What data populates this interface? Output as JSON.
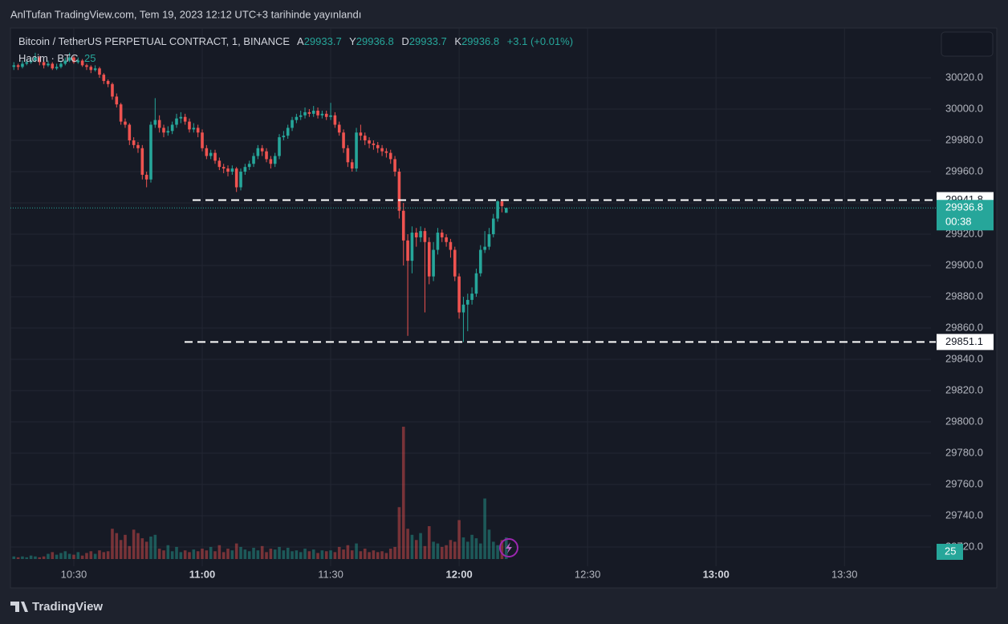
{
  "header": {
    "published": "AnlTufan TradingView.com, Tem 19, 2023 12:12 UTC+3 tarihinde yayınlandı",
    "symbol": "Bitcoin / TetherUS PERPETUAL CONTRACT, 1, BINANCE",
    "open_label": "A",
    "high_label": "Y",
    "low_label": "D",
    "close_label": "K",
    "change": "+3.1 (+0.01%)",
    "volume_label": "Hacim · BTC",
    "countdown": "00:38"
  },
  "footer": {
    "brand": "TradingView"
  },
  "chart_data": {
    "type": "candlestick",
    "x": [
      616,
      617,
      618,
      619,
      620,
      621,
      622,
      623,
      624,
      625,
      626,
      627,
      628,
      629,
      630,
      631,
      632,
      633,
      634,
      635,
      636,
      637,
      638,
      639,
      640,
      641,
      642,
      643,
      644,
      645,
      646,
      647,
      648,
      649,
      650,
      651,
      652,
      653,
      654,
      655,
      656,
      657,
      658,
      659,
      660,
      661,
      662,
      663,
      664,
      665,
      666,
      667,
      668,
      669,
      670,
      671,
      672,
      673,
      674,
      675,
      676,
      677,
      678,
      679,
      680,
      681,
      682,
      683,
      684,
      685,
      686,
      687,
      688,
      689,
      690,
      691,
      692,
      693,
      694,
      695,
      696,
      697,
      698,
      699,
      700,
      701,
      702,
      703,
      704,
      705,
      706,
      707,
      708,
      709,
      710,
      711,
      712,
      713,
      714,
      715,
      716,
      717,
      718,
      719,
      720,
      721,
      722,
      723,
      724,
      725,
      726,
      727,
      728,
      729,
      730,
      731
    ],
    "open": [
      30027,
      30028,
      30027,
      30029,
      30030,
      30031,
      30033,
      30030,
      30028,
      30029,
      30026,
      30027,
      30029,
      30031,
      30033,
      30030,
      30031,
      30028,
      30027,
      30025,
      30026,
      30022,
      30018,
      30016,
      30008,
      30003,
      29992,
      29990,
      29980,
      29977,
      29975,
      29958,
      29955,
      29990,
      29993,
      29988,
      29985,
      29986,
      29990,
      29994,
      29995,
      29992,
      29987,
      29988,
      29985,
      29975,
      29970,
      29972,
      29967,
      29963,
      29962,
      29960,
      29962,
      29950,
      29960,
      29963,
      29965,
      29970,
      29975,
      29973,
      29968,
      29965,
      29970,
      29982,
      29983,
      29988,
      29993,
      29995,
      29996,
      29998,
      29997,
      29999,
      29996,
      29997,
      29995,
      29996,
      29990,
      29985,
      29975,
      29966,
      29962,
      29985,
      29983,
      29980,
      29978,
      29977,
      29975,
      29973,
      29972,
      29968,
      29960,
      29935,
      29916,
      29903,
      29921,
      29918,
      29922,
      29915,
      29893,
      29910,
      29921,
      29918,
      29915,
      29910,
      29893,
      29870,
      29875,
      29878,
      29882,
      29895,
      29910,
      29912,
      29920,
      29930,
      29941,
      29933.7
    ],
    "high": [
      30030,
      30029,
      30031,
      30032,
      30033,
      30036,
      30034,
      30031,
      30031,
      30030,
      30029,
      30031,
      30033,
      30036,
      30034,
      30033,
      30032,
      30029,
      30028,
      30028,
      30027,
      30023,
      30019,
      30017,
      30010,
      30004,
      29994,
      29991,
      29982,
      29979,
      29977,
      29960,
      29992,
      30007,
      29996,
      29990,
      29989,
      29992,
      29997,
      29998,
      29997,
      29994,
      29991,
      29990,
      29987,
      29977,
      29974,
      29974,
      29969,
      29965,
      29964,
      29964,
      29963,
      29962,
      29965,
      29967,
      29972,
      29977,
      29977,
      29975,
      29970,
      29972,
      29984,
      29986,
      29990,
      29995,
      29997,
      29999,
      30001,
      30000,
      30002,
      30001,
      29999,
      29999,
      30004,
      29998,
      29992,
      29987,
      29977,
      29968,
      29988,
      29990,
      29985,
      29982,
      29980,
      29979,
      29977,
      29975,
      29974,
      29970,
      29962,
      29940,
      29920,
      29925,
      29924,
      29925,
      29924,
      29918,
      29915,
      29924,
      29923,
      29920,
      29917,
      29912,
      29895,
      29880,
      29882,
      29886,
      29898,
      29913,
      29922,
      29924,
      29933,
      29941.8,
      29941.5,
      29936.8
    ],
    "low": [
      30025,
      30025,
      30026,
      30028,
      30029,
      30030,
      30028,
      30026,
      30027,
      30025,
      30025,
      30026,
      30028,
      30030,
      30029,
      30029,
      30027,
      30025,
      30023,
      30024,
      30020,
      30016,
      30014,
      30006,
      30001,
      29990,
      29988,
      29977,
      29975,
      29972,
      29955,
      29950,
      29953,
      29988,
      29985,
      29982,
      29983,
      29984,
      29988,
      29991,
      29990,
      29985,
      29985,
      29982,
      29973,
      29968,
      29968,
      29965,
      29961,
      29959,
      29957,
      29958,
      29947,
      29948,
      29958,
      29961,
      29963,
      29968,
      29970,
      29966,
      29962,
      29963,
      29968,
      29980,
      29981,
      29986,
      29991,
      29993,
      29994,
      29995,
      29995,
      29994,
      29994,
      29993,
      29993,
      29988,
      29983,
      29972,
      29963,
      29960,
      29960,
      29980,
      29977,
      29975,
      29974,
      29972,
      29970,
      29969,
      29965,
      29957,
      29930,
      29900,
      29855,
      29895,
      29912,
      29915,
      29870,
      29888,
      29890,
      29907,
      29915,
      29912,
      29905,
      29890,
      29866,
      29851.1,
      29858,
      29875,
      29880,
      29893,
      29908,
      29910,
      29918,
      29928,
      29934,
      29933.7
    ],
    "close": [
      30028,
      30027,
      30029,
      30030,
      30031,
      30033,
      30030,
      30028,
      30029,
      30026,
      30027,
      30029,
      30031,
      30033,
      30030,
      30031,
      30028,
      30027,
      30025,
      30026,
      30022,
      30018,
      30016,
      30008,
      30003,
      29992,
      29990,
      29980,
      29977,
      29975,
      29958,
      29955,
      29990,
      29993,
      29988,
      29985,
      29986,
      29990,
      29994,
      29995,
      29992,
      29987,
      29988,
      29985,
      29975,
      29970,
      29972,
      29967,
      29963,
      29962,
      29960,
      29962,
      29950,
      29960,
      29963,
      29965,
      29970,
      29975,
      29973,
      29968,
      29965,
      29970,
      29982,
      29983,
      29988,
      29993,
      29995,
      29996,
      29998,
      29997,
      29999,
      29996,
      29997,
      29995,
      29996,
      29990,
      29985,
      29975,
      29966,
      29962,
      29985,
      29983,
      29980,
      29978,
      29977,
      29975,
      29973,
      29972,
      29968,
      29960,
      29935,
      29916,
      29903,
      29921,
      29918,
      29922,
      29915,
      29893,
      29910,
      29921,
      29918,
      29915,
      29910,
      29893,
      29870,
      29875,
      29878,
      29882,
      29895,
      29910,
      29912,
      29920,
      29930,
      29941,
      29938,
      29936.8
    ],
    "volume": [
      3,
      2,
      3,
      2,
      4,
      3,
      2,
      3,
      6,
      8,
      5,
      7,
      9,
      6,
      5,
      8,
      4,
      7,
      9,
      6,
      10,
      8,
      9,
      35,
      30,
      22,
      28,
      15,
      34,
      30,
      24,
      20,
      26,
      28,
      12,
      10,
      16,
      9,
      14,
      8,
      10,
      8,
      11,
      9,
      12,
      10,
      14,
      9,
      16,
      8,
      12,
      10,
      18,
      14,
      11,
      9,
      13,
      10,
      15,
      8,
      12,
      11,
      14,
      10,
      13,
      9,
      10,
      8,
      12,
      9,
      11,
      7,
      10,
      9,
      10,
      8,
      14,
      11,
      16,
      10,
      18,
      9,
      12,
      8,
      10,
      8,
      9,
      7,
      12,
      14,
      60,
      153,
      35,
      28,
      22,
      30,
      15,
      38,
      20,
      18,
      14,
      16,
      22,
      20,
      45,
      25,
      20,
      28,
      24,
      18,
      70,
      34,
      20,
      16,
      22,
      25
    ],
    "up_color": "#26a69a",
    "down_color": "#ef5350",
    "xlim": [
      615.2,
      830.2
    ],
    "xticks": [
      {
        "value": 630,
        "label": "10:30"
      },
      {
        "value": 660,
        "label": "11:00"
      },
      {
        "value": 690,
        "label": "11:30"
      },
      {
        "value": 720,
        "label": "12:00"
      },
      {
        "value": 750,
        "label": "12:30"
      },
      {
        "value": 780,
        "label": "13:00"
      },
      {
        "value": 810,
        "label": "13:30"
      }
    ],
    "ylim": [
      29707.7,
      30051.8
    ],
    "yticks": [
      {
        "value": 30020,
        "label": "30020.0"
      },
      {
        "value": 30000,
        "label": "30000.0"
      },
      {
        "value": 29980,
        "label": "29980.0"
      },
      {
        "value": 29960,
        "label": "29960.0"
      },
      {
        "value": 29940,
        "label": "29940.0"
      },
      {
        "value": 29920,
        "label": "29920.0"
      },
      {
        "value": 29900,
        "label": "29900.0"
      },
      {
        "value": 29880,
        "label": "29880.0"
      },
      {
        "value": 29860,
        "label": "29860.0"
      },
      {
        "value": 29840,
        "label": "29840.0"
      },
      {
        "value": 29820,
        "label": "29820.0"
      },
      {
        "value": 29800,
        "label": "29800.0"
      },
      {
        "value": 29780,
        "label": "29780.0"
      },
      {
        "value": 29760,
        "label": "29760.0"
      },
      {
        "value": 29740,
        "label": "29740.0"
      },
      {
        "value": 29720,
        "label": "29720.0"
      }
    ],
    "levels": [
      29941.8,
      29851.1
    ],
    "grid": true
  }
}
